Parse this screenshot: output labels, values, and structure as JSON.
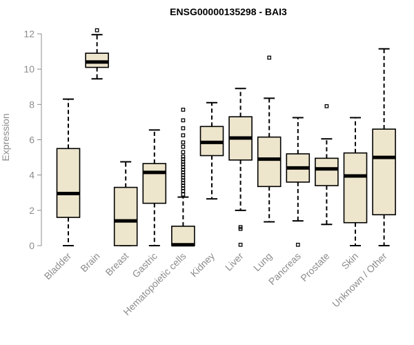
{
  "colors": {
    "box_fill": "#ede5cc",
    "stroke": "#000000",
    "axis": "#8c8c8c",
    "label": "#8c8c8c",
    "title": "#000000"
  },
  "chart_data": {
    "type": "boxplot",
    "title": "ENSG00000135298 - BAI3",
    "xlabel": "",
    "ylabel": "Expression",
    "ylim": [
      0,
      12
    ],
    "yticks": [
      "0",
      "2",
      "4",
      "6",
      "8",
      "10",
      "12"
    ],
    "boxes": [
      {
        "category": "Bladder",
        "whisker_low": 0.0,
        "q1": 1.6,
        "median": 2.95,
        "q3": 5.5,
        "whisker_high": 8.3,
        "outliers": []
      },
      {
        "category": "Brain",
        "whisker_low": 9.45,
        "q1": 10.1,
        "median": 10.4,
        "q3": 10.9,
        "whisker_high": 11.95,
        "outliers": [
          12.2
        ]
      },
      {
        "category": "Breast",
        "whisker_low": 0.0,
        "q1": 0.0,
        "median": 1.4,
        "q3": 3.3,
        "whisker_high": 4.75,
        "outliers": []
      },
      {
        "category": "Gastric",
        "whisker_low": 0.0,
        "q1": 2.4,
        "median": 4.15,
        "q3": 4.65,
        "whisker_high": 6.55,
        "outliers": []
      },
      {
        "category": "Hematopoietic cells",
        "whisker_low": 0.0,
        "q1": 0.0,
        "median": 0.05,
        "q3": 1.1,
        "whisker_high": 2.75,
        "outliers": [
          2.9,
          3.1,
          3.25,
          3.4,
          3.55,
          3.7,
          3.85,
          4.0,
          4.15,
          4.3,
          4.45,
          4.6,
          4.75,
          4.9,
          5.05,
          5.3,
          5.6,
          5.85,
          6.25,
          6.65,
          7.1,
          7.7
        ]
      },
      {
        "category": "Kidney",
        "whisker_low": 2.65,
        "q1": 5.1,
        "median": 5.85,
        "q3": 6.75,
        "whisker_high": 8.1,
        "outliers": []
      },
      {
        "category": "Liver",
        "whisker_low": 2.0,
        "q1": 4.85,
        "median": 6.1,
        "q3": 7.3,
        "whisker_high": 8.9,
        "outliers": [
          0.05,
          0.95,
          1.05
        ]
      },
      {
        "category": "Lung",
        "whisker_low": 1.35,
        "q1": 3.35,
        "median": 4.9,
        "q3": 6.15,
        "whisker_high": 8.35,
        "outliers": [
          10.65
        ]
      },
      {
        "category": "Pancreas",
        "whisker_low": 1.4,
        "q1": 3.6,
        "median": 4.4,
        "q3": 5.2,
        "whisker_high": 7.25,
        "outliers": [
          0.05
        ]
      },
      {
        "category": "Prostate",
        "whisker_low": 1.2,
        "q1": 3.4,
        "median": 4.35,
        "q3": 4.95,
        "whisker_high": 6.05,
        "outliers": [
          7.9
        ]
      },
      {
        "category": "Skin",
        "whisker_low": 0.0,
        "q1": 1.3,
        "median": 3.95,
        "q3": 5.25,
        "whisker_high": 7.25,
        "outliers": []
      },
      {
        "category": "Unknown / Other",
        "whisker_low": 0.0,
        "q1": 1.75,
        "median": 5.0,
        "q3": 6.6,
        "whisker_high": 11.15,
        "outliers": []
      }
    ]
  }
}
